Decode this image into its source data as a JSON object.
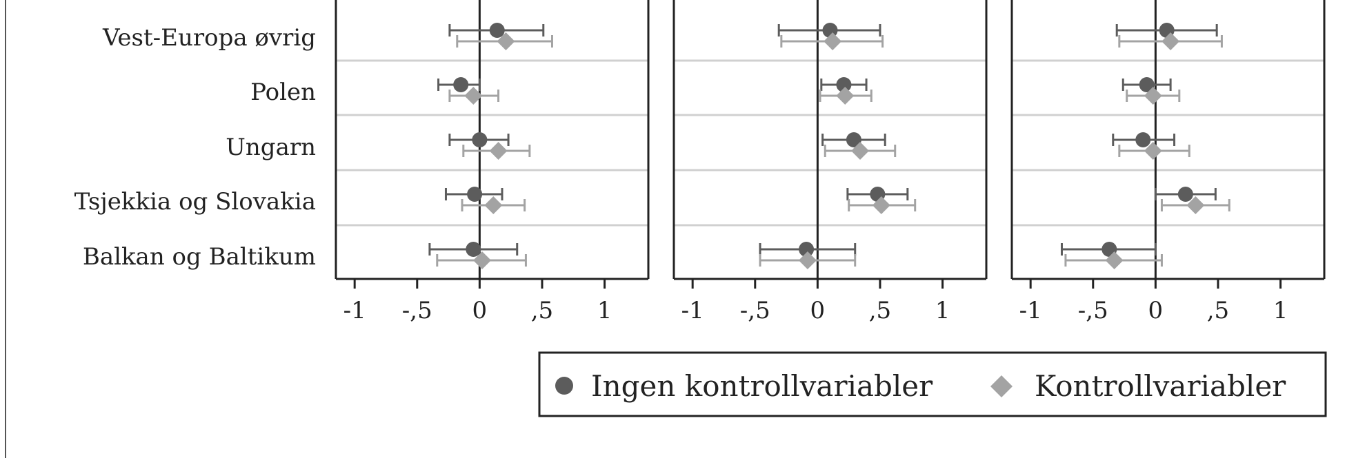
{
  "chart_data": {
    "type": "scatter",
    "style": "coefficient-plot with error bars",
    "categories": [
      "Vest-Europa øvrig",
      "Polen",
      "Ungarn",
      "Tsjekkia og Slovakia",
      "Balkan og Baltikum"
    ],
    "xlim": [
      -1.15,
      1.35
    ],
    "xticks": [
      -1,
      -0.5,
      0,
      0.5,
      1
    ],
    "xtick_labels": [
      "-1",
      "-,5",
      "0",
      ",5",
      "1"
    ],
    "reference_line": 0,
    "grid": "horizontal separators between categories",
    "legend": {
      "placement": "bottom-right",
      "entries": [
        {
          "label": "Ingen kontrollvariabler",
          "marker": "circle",
          "color": "#5c5c5c"
        },
        {
          "label": "Kontrollvariabler",
          "marker": "diamond",
          "color": "#a3a3a3"
        }
      ]
    },
    "panels": [
      {
        "series": [
          {
            "name": "Ingen kontrollvariabler",
            "estimates": [
              0.14,
              -0.15,
              0.0,
              -0.04,
              -0.05
            ],
            "lower": [
              -0.24,
              -0.33,
              -0.24,
              -0.27,
              -0.4
            ],
            "upper": [
              0.51,
              0.0,
              0.23,
              0.18,
              0.3
            ]
          },
          {
            "name": "Kontrollvariabler",
            "estimates": [
              0.21,
              -0.05,
              0.15,
              0.11,
              0.02
            ],
            "lower": [
              -0.18,
              -0.24,
              -0.13,
              -0.14,
              -0.34
            ],
            "upper": [
              0.58,
              0.15,
              0.4,
              0.36,
              0.37
            ]
          }
        ]
      },
      {
        "series": [
          {
            "name": "Ingen kontrollvariabler",
            "estimates": [
              0.1,
              0.21,
              0.29,
              0.48,
              -0.09
            ],
            "lower": [
              -0.31,
              0.03,
              0.04,
              0.24,
              -0.46
            ],
            "upper": [
              0.5,
              0.39,
              0.54,
              0.72,
              0.3
            ]
          },
          {
            "name": "Kontrollvariabler",
            "estimates": [
              0.12,
              0.22,
              0.34,
              0.51,
              -0.08
            ],
            "lower": [
              -0.29,
              0.02,
              0.06,
              0.25,
              -0.46
            ],
            "upper": [
              0.52,
              0.43,
              0.62,
              0.78,
              0.3
            ]
          }
        ]
      },
      {
        "series": [
          {
            "name": "Ingen kontrollvariabler",
            "estimates": [
              0.09,
              -0.07,
              -0.1,
              0.24,
              -0.37
            ],
            "lower": [
              -0.31,
              -0.26,
              -0.34,
              0.0,
              -0.75
            ],
            "upper": [
              0.49,
              0.12,
              0.15,
              0.48,
              0.0
            ]
          },
          {
            "name": "Kontrollvariabler",
            "estimates": [
              0.12,
              -0.02,
              -0.02,
              0.32,
              -0.33
            ],
            "lower": [
              -0.29,
              -0.23,
              -0.29,
              0.05,
              -0.72
            ],
            "upper": [
              0.53,
              0.19,
              0.27,
              0.59,
              0.05
            ]
          }
        ]
      }
    ]
  }
}
